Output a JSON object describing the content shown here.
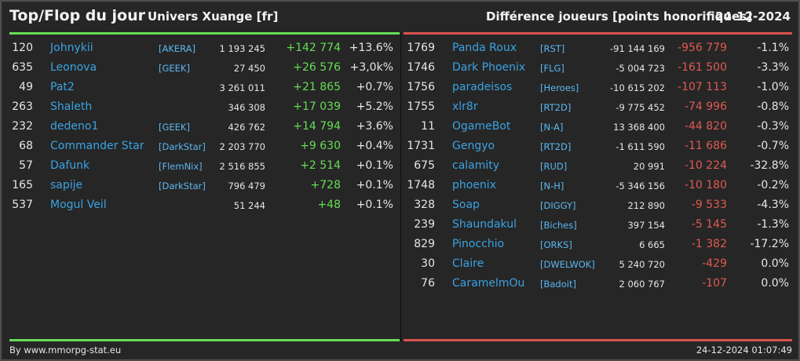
{
  "header": {
    "title": "Top/Flop du jour",
    "universe": "Univers Xuange [fr]",
    "metric": "Différence joueurs [points honorifiques]",
    "date": "24-12-2024"
  },
  "colors": {
    "top_accent": "#66dd55",
    "flop_accent": "#d9544d",
    "name_link": "#3aa3e3"
  },
  "top": [
    {
      "rank": "120",
      "name": "Johnykii",
      "tag": "[AKERA]",
      "total": "1 193 245",
      "diff": "+142 774",
      "pct": "+13.6%"
    },
    {
      "rank": "635",
      "name": "Leonova",
      "tag": "[GEEK]",
      "total": "27 450",
      "diff": "+26 576",
      "pct": "+3,0k%"
    },
    {
      "rank": "49",
      "name": "Pat2",
      "tag": "",
      "total": "3 261 011",
      "diff": "+21 865",
      "pct": "+0.7%"
    },
    {
      "rank": "263",
      "name": "Shaleth",
      "tag": "",
      "total": "346 308",
      "diff": "+17 039",
      "pct": "+5.2%"
    },
    {
      "rank": "232",
      "name": "dedeno1",
      "tag": "[GEEK]",
      "total": "426 762",
      "diff": "+14 794",
      "pct": "+3.6%"
    },
    {
      "rank": "68",
      "name": "Commander Star",
      "tag": "[DarkStar]",
      "total": "2 203 770",
      "diff": "+9 630",
      "pct": "+0.4%"
    },
    {
      "rank": "57",
      "name": "Dafunk",
      "tag": "[FlemNix]",
      "total": "2 516 855",
      "diff": "+2 514",
      "pct": "+0.1%"
    },
    {
      "rank": "165",
      "name": "sapije",
      "tag": "[DarkStar]",
      "total": "796 479",
      "diff": "+728",
      "pct": "+0.1%"
    },
    {
      "rank": "537",
      "name": "Mogul Veil",
      "tag": "",
      "total": "51 244",
      "diff": "+48",
      "pct": "+0.1%"
    }
  ],
  "flop": [
    {
      "rank": "1769",
      "name": "Panda Roux",
      "tag": "[RST]",
      "total": "-91 144 169",
      "diff": "-956 779",
      "pct": "-1.1%"
    },
    {
      "rank": "1746",
      "name": "Dark Phoenix",
      "tag": "[FLG]",
      "total": "-5 004 723",
      "diff": "-161 500",
      "pct": "-3.3%"
    },
    {
      "rank": "1756",
      "name": "paradeisos",
      "tag": "[Heroes]",
      "total": "-10 615 202",
      "diff": "-107 113",
      "pct": "-1.0%"
    },
    {
      "rank": "1755",
      "name": "xlr8r",
      "tag": "[RT2D]",
      "total": "-9 775 452",
      "diff": "-74 996",
      "pct": "-0.8%"
    },
    {
      "rank": "11",
      "name": "OgameBot",
      "tag": "[N-A]",
      "total": "13 368 400",
      "diff": "-44 820",
      "pct": "-0.3%"
    },
    {
      "rank": "1731",
      "name": "Gengyo",
      "tag": "[RT2D]",
      "total": "-1 611 590",
      "diff": "-11 686",
      "pct": "-0.7%"
    },
    {
      "rank": "675",
      "name": "calamity",
      "tag": "[RUD]",
      "total": "20 991",
      "diff": "-10 224",
      "pct": "-32.8%"
    },
    {
      "rank": "1748",
      "name": "phoenix",
      "tag": "[N-H]",
      "total": "-5 346 156",
      "diff": "-10 180",
      "pct": "-0.2%"
    },
    {
      "rank": "328",
      "name": "Soap",
      "tag": "[DIGGY]",
      "total": "212 890",
      "diff": "-9 533",
      "pct": "-4.3%"
    },
    {
      "rank": "239",
      "name": "Shaundakul",
      "tag": "[Biches]",
      "total": "397 154",
      "diff": "-5 145",
      "pct": "-1.3%"
    },
    {
      "rank": "829",
      "name": "Pinocchio",
      "tag": "[ORKS]",
      "total": "6 665",
      "diff": "-1 382",
      "pct": "-17.2%"
    },
    {
      "rank": "30",
      "name": "Claire",
      "tag": "[DWELWOK]",
      "total": "5 240 720",
      "diff": "-429",
      "pct": "0.0%"
    },
    {
      "rank": "76",
      "name": "CaramelmOu",
      "tag": "[Badoit]",
      "total": "2 060 767",
      "diff": "-107",
      "pct": "0.0%"
    }
  ],
  "footer": {
    "source": "By www.mmorpg-stat.eu",
    "timestamp": "24-12-2024 01:07:49"
  }
}
